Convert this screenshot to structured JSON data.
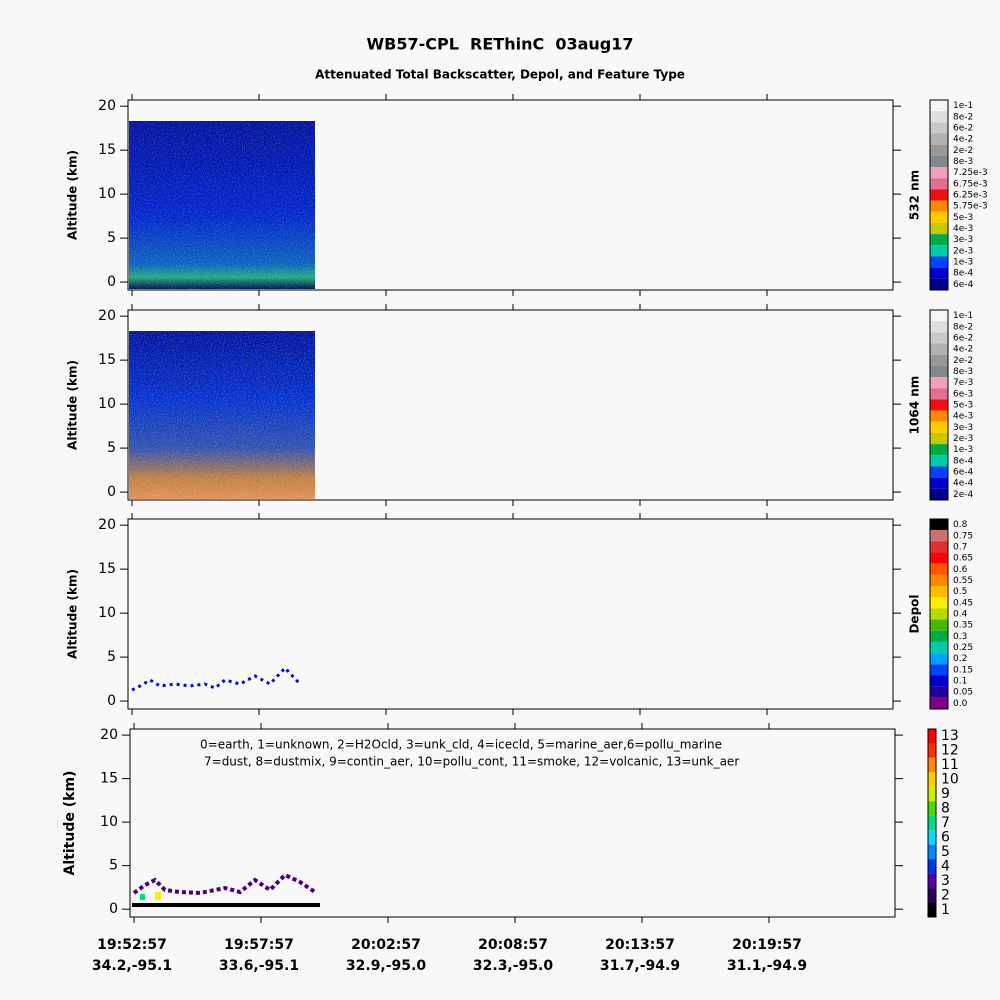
{
  "chart_data": [
    {
      "type": "heatmap",
      "title": "WB57-CPL  REThinC  03aug17",
      "subtitle": "Attenuated Total Backscatter, Depol, and Feature Type",
      "ylabel": "Altitude (km)",
      "ylim": [
        -0.9,
        20.7
      ],
      "yticks": [
        0,
        5,
        10,
        15,
        20
      ],
      "colorbar": {
        "title": "532 nm",
        "labels": [
          "1e-1",
          "8e-2",
          "6e-2",
          "4e-2",
          "2e-2",
          "8e-3",
          "7.25e-3",
          "6.75e-3",
          "6.25e-3",
          "5.75e-3",
          "5e-3",
          "4e-3",
          "3e-3",
          "2e-3",
          "1e-3",
          "8e-4",
          "6e-4"
        ],
        "colors": [
          "#f4f4f4",
          "#dedede",
          "#c8c8c8",
          "#b0b0b0",
          "#989898",
          "#808890",
          "#f0a0b8",
          "#e07090",
          "#ee1010",
          "#ff8800",
          "#ffcc00",
          "#c8c800",
          "#00aa44",
          "#00ccaa",
          "#0044ff",
          "#0000cc",
          "#000088"
        ]
      }
    },
    {
      "type": "heatmap",
      "ylabel": "Altitude (km)",
      "ylim": [
        -0.9,
        20.7
      ],
      "yticks": [
        0,
        5,
        10,
        15,
        20
      ],
      "colorbar": {
        "title": "1064 nm",
        "labels": [
          "1e-1",
          "8e-2",
          "6e-2",
          "4e-2",
          "2e-2",
          "8e-3",
          "7e-3",
          "6e-3",
          "5e-3",
          "4e-3",
          "3e-3",
          "2e-3",
          "1e-3",
          "8e-4",
          "6e-4",
          "4e-4",
          "2e-4"
        ],
        "colors": [
          "#f4f4f4",
          "#dedede",
          "#c8c8c8",
          "#b0b0b0",
          "#989898",
          "#808890",
          "#f0a0b8",
          "#e07090",
          "#ee1010",
          "#ff8800",
          "#ffcc00",
          "#c8c800",
          "#00aa44",
          "#00ccaa",
          "#0044ff",
          "#0000cc",
          "#000088"
        ]
      }
    },
    {
      "type": "heatmap",
      "ylabel": "Altitude (km)",
      "ylim": [
        -0.9,
        20.7
      ],
      "yticks": [
        0,
        5,
        10,
        15,
        20
      ],
      "colorbar": {
        "title": "Depol",
        "labels": [
          "0.8",
          "0.75",
          "0.7",
          "0.65",
          "0.6",
          "0.55",
          "0.5",
          "0.45",
          "0.4",
          "0.35",
          "0.3",
          "0.25",
          "0.2",
          "0.15",
          "0.1",
          "0.05",
          "0.0"
        ],
        "colors": [
          "#000000",
          "#d07070",
          "#e03030",
          "#ff0000",
          "#ff5500",
          "#ff8800",
          "#ffbb00",
          "#ffee00",
          "#b8d800",
          "#44bb00",
          "#00aa44",
          "#00ccaa",
          "#00a0ff",
          "#0044ff",
          "#0000cc",
          "#2000a0",
          "#800080"
        ]
      }
    },
    {
      "type": "heatmap",
      "ylabel": "Altitude (km)",
      "ylim": [
        -0.9,
        20.7
      ],
      "yticks": [
        0,
        5,
        10,
        15,
        20
      ],
      "annotation": [
        "0=earth, 1=unknown, 2=H2Ocld, 3=unk_cld, 4=icecld, 5=marine_aer,6=pollu_marine",
        "7=dust, 8=dustmix, 9=contin_aer, 10=pollu_cont, 11=smoke, 12=volcanic, 13=unk_aer"
      ],
      "colorbar": {
        "labels": [
          13,
          12,
          11,
          10,
          9,
          8,
          7,
          6,
          5,
          4,
          3,
          2,
          1
        ],
        "colors": [
          "#ff0000",
          "#ff3300",
          "#ff8800",
          "#ffcc00",
          "#ccee00",
          "#44dd00",
          "#00dd88",
          "#00ddff",
          "#0088ff",
          "#0033ee",
          "#5500aa",
          "#330055",
          "#000000"
        ]
      },
      "categories": [
        "19:52:57",
        "19:57:57",
        "20:02:57",
        "20:08:57",
        "20:13:57",
        "20:19:57"
      ],
      "category_sublabels": [
        "34.2,-95.1",
        "33.6,-95.1",
        "32.9,-95.0",
        "32.3,-95.0",
        "31.7,-94.9",
        "31.1,-94.9"
      ]
    }
  ]
}
